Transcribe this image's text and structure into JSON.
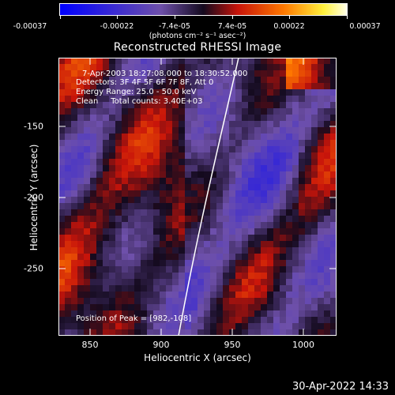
{
  "colorbar": {
    "ticks": [
      "-0.00037",
      "-0.00022",
      "-7.4e-05",
      "7.4e-05",
      "0.00022",
      "0.00037"
    ],
    "units": "(photons cm⁻² s⁻¹ asec⁻²)"
  },
  "title": "Reconstructed RHESSI Image",
  "info": {
    "time_range": "7-Apr-2003 18:27:08.000 to 18:30:52.000",
    "detectors": "Detectors: 3F 4F 5F 6F 7F 8F, Att 0",
    "energy_range": "Energy Range: 25.0 - 50.0 keV",
    "clean_counts": "Clean     Total counts: 3.40E+03",
    "peak": "Position of Peak = [982,-108]"
  },
  "axes": {
    "xlabel": "Heliocentric X (arcsec)",
    "ylabel": "Heliocentric Y (arcsec)",
    "xticks": [
      "850",
      "900",
      "950",
      "1000"
    ],
    "yticks": [
      "-150",
      "-200",
      "-250"
    ],
    "xlim": [
      828,
      1022
    ],
    "ylim": [
      -292,
      -98
    ]
  },
  "footer": {
    "date": "30-Apr-2022 14:33"
  },
  "colors": {
    "low": "#0000ff",
    "mid": "#6a4aa0",
    "high": "#ffff40"
  }
}
